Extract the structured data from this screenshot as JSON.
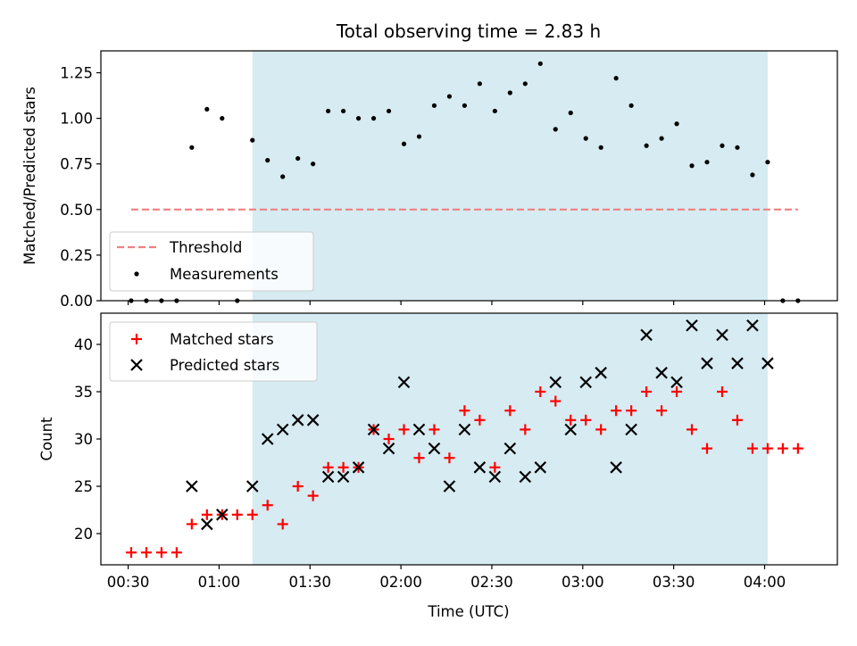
{
  "chart_data": [
    {
      "type": "scatter",
      "title": "Total observing time = 2.83 h",
      "ylabel": "Matched/Predicted stars",
      "xlabel": "",
      "xlim": [
        "00:21",
        "04:24"
      ],
      "ylim": [
        0.0,
        1.37
      ],
      "yticks": [
        "0.00",
        "0.25",
        "0.50",
        "0.75",
        "1.00",
        "1.25"
      ],
      "show_x_tick_labels": false,
      "grid": false,
      "legend_position": "lower-left",
      "shaded_span": {
        "start": "01:11",
        "end": "04:01",
        "color": "#add8e6"
      },
      "series": [
        {
          "name": "Threshold",
          "kind": "line",
          "style": "dashed",
          "color": "#f08080",
          "points": [
            [
              "00:31",
              0.5
            ],
            [
              "04:11",
              0.5
            ]
          ]
        },
        {
          "name": "Measurements",
          "kind": "dots",
          "color": "#000000",
          "points": [
            [
              "00:31",
              0.0
            ],
            [
              "00:36",
              0.0
            ],
            [
              "00:41",
              0.0
            ],
            [
              "00:46",
              0.0
            ],
            [
              "00:51",
              0.84
            ],
            [
              "00:56",
              1.05
            ],
            [
              "01:01",
              1.0
            ],
            [
              "01:06",
              0.0
            ],
            [
              "01:11",
              0.88
            ],
            [
              "01:16",
              0.77
            ],
            [
              "01:21",
              0.68
            ],
            [
              "01:26",
              0.78
            ],
            [
              "01:31",
              0.75
            ],
            [
              "01:36",
              1.04
            ],
            [
              "01:41",
              1.04
            ],
            [
              "01:46",
              1.0
            ],
            [
              "01:51",
              1.0
            ],
            [
              "01:56",
              1.04
            ],
            [
              "02:01",
              0.86
            ],
            [
              "02:06",
              0.9
            ],
            [
              "02:11",
              1.07
            ],
            [
              "02:16",
              1.12
            ],
            [
              "02:21",
              1.07
            ],
            [
              "02:26",
              1.19
            ],
            [
              "02:31",
              1.04
            ],
            [
              "02:36",
              1.14
            ],
            [
              "02:41",
              1.19
            ],
            [
              "02:46",
              1.3
            ],
            [
              "02:51",
              0.94
            ],
            [
              "02:56",
              1.03
            ],
            [
              "03:01",
              0.89
            ],
            [
              "03:06",
              0.84
            ],
            [
              "03:11",
              1.22
            ],
            [
              "03:16",
              1.07
            ],
            [
              "03:21",
              0.85
            ],
            [
              "03:26",
              0.89
            ],
            [
              "03:31",
              0.97
            ],
            [
              "03:36",
              0.74
            ],
            [
              "03:41",
              0.76
            ],
            [
              "03:46",
              0.85
            ],
            [
              "03:51",
              0.84
            ],
            [
              "03:56",
              0.69
            ],
            [
              "04:01",
              0.76
            ],
            [
              "04:06",
              0.0
            ],
            [
              "04:11",
              0.0
            ]
          ]
        }
      ]
    },
    {
      "type": "scatter",
      "title": "",
      "ylabel": "Count",
      "xlabel": "Time (UTC)",
      "xlim": [
        "00:21",
        "04:24"
      ],
      "ylim": [
        16.7,
        43.3
      ],
      "yticks": [
        "20",
        "25",
        "30",
        "35",
        "40"
      ],
      "xticks": [
        "00:30",
        "01:00",
        "01:30",
        "02:00",
        "02:30",
        "03:00",
        "03:30",
        "04:00"
      ],
      "grid": false,
      "legend_position": "upper-left",
      "shaded_span": {
        "start": "01:11",
        "end": "04:01",
        "color": "#add8e6"
      },
      "series": [
        {
          "name": "Matched stars",
          "marker": "plus",
          "color": "#ff0000",
          "points": [
            [
              "00:31",
              18
            ],
            [
              "00:36",
              18
            ],
            [
              "00:41",
              18
            ],
            [
              "00:46",
              18
            ],
            [
              "00:51",
              21
            ],
            [
              "00:56",
              22
            ],
            [
              "01:01",
              22
            ],
            [
              "01:06",
              22
            ],
            [
              "01:11",
              22
            ],
            [
              "01:16",
              23
            ],
            [
              "01:21",
              21
            ],
            [
              "01:26",
              25
            ],
            [
              "01:31",
              24
            ],
            [
              "01:36",
              27
            ],
            [
              "01:41",
              27
            ],
            [
              "01:46",
              27
            ],
            [
              "01:51",
              31
            ],
            [
              "01:56",
              30
            ],
            [
              "02:01",
              31
            ],
            [
              "02:06",
              28
            ],
            [
              "02:11",
              31
            ],
            [
              "02:16",
              28
            ],
            [
              "02:21",
              33
            ],
            [
              "02:26",
              32
            ],
            [
              "02:31",
              27
            ],
            [
              "02:36",
              33
            ],
            [
              "02:41",
              31
            ],
            [
              "02:46",
              35
            ],
            [
              "02:51",
              34
            ],
            [
              "02:56",
              32
            ],
            [
              "03:01",
              32
            ],
            [
              "03:06",
              31
            ],
            [
              "03:11",
              33
            ],
            [
              "03:16",
              33
            ],
            [
              "03:21",
              35
            ],
            [
              "03:26",
              33
            ],
            [
              "03:31",
              35
            ],
            [
              "03:36",
              31
            ],
            [
              "03:41",
              29
            ],
            [
              "03:46",
              35
            ],
            [
              "03:51",
              32
            ],
            [
              "03:56",
              29
            ],
            [
              "04:01",
              29
            ],
            [
              "04:06",
              29
            ],
            [
              "04:11",
              29
            ]
          ]
        },
        {
          "name": "Predicted stars",
          "marker": "x",
          "color": "#000000",
          "points": [
            [
              "00:51",
              25
            ],
            [
              "00:56",
              21
            ],
            [
              "01:01",
              22
            ],
            [
              "01:11",
              25
            ],
            [
              "01:16",
              30
            ],
            [
              "01:21",
              31
            ],
            [
              "01:26",
              32
            ],
            [
              "01:31",
              32
            ],
            [
              "01:36",
              26
            ],
            [
              "01:41",
              26
            ],
            [
              "01:46",
              27
            ],
            [
              "01:51",
              31
            ],
            [
              "01:56",
              29
            ],
            [
              "02:01",
              36
            ],
            [
              "02:06",
              31
            ],
            [
              "02:11",
              29
            ],
            [
              "02:16",
              25
            ],
            [
              "02:21",
              31
            ],
            [
              "02:26",
              27
            ],
            [
              "02:31",
              26
            ],
            [
              "02:36",
              29
            ],
            [
              "02:41",
              26
            ],
            [
              "02:46",
              27
            ],
            [
              "02:51",
              36
            ],
            [
              "02:56",
              31
            ],
            [
              "03:01",
              36
            ],
            [
              "03:06",
              37
            ],
            [
              "03:11",
              27
            ],
            [
              "03:16",
              31
            ],
            [
              "03:21",
              41
            ],
            [
              "03:26",
              37
            ],
            [
              "03:31",
              36
            ],
            [
              "03:36",
              42
            ],
            [
              "03:41",
              38
            ],
            [
              "03:46",
              41
            ],
            [
              "03:51",
              38
            ],
            [
              "03:56",
              42
            ],
            [
              "04:01",
              38
            ]
          ]
        }
      ]
    }
  ]
}
